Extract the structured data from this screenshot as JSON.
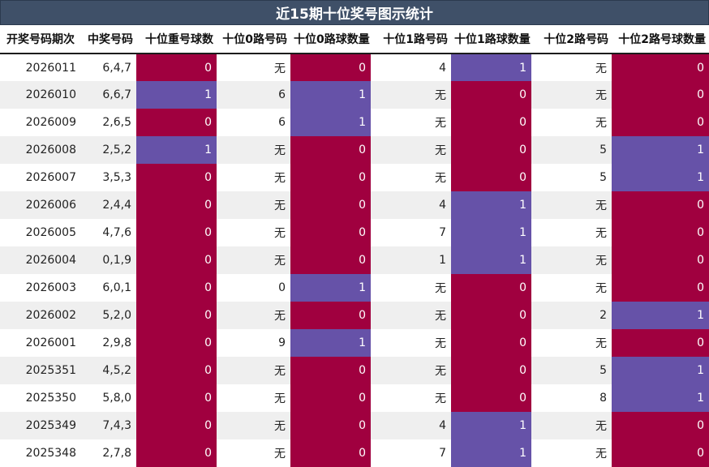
{
  "title": "近15期十位奖号图示统计",
  "colors": {
    "header_bg": "#3f5068",
    "zero_cell": "#a0003f",
    "one_cell": "#6652a8",
    "alt_row": "#efefef"
  },
  "chart_data": {
    "type": "table",
    "title": "近15期十位奖号图示统计",
    "columns": [
      "开奖号码期次",
      "中奖号码",
      "十位重号球数",
      "十位0路号码",
      "十位0路球数量",
      "十位1路号码",
      "十位1路球数量",
      "十位2路号码",
      "十位2路号球数量"
    ],
    "rows": [
      [
        "2026011",
        "6,4,7",
        "0",
        "无",
        "0",
        "4",
        "1",
        "无",
        "0"
      ],
      [
        "2026010",
        "6,6,7",
        "1",
        "6",
        "1",
        "无",
        "0",
        "无",
        "0"
      ],
      [
        "2026009",
        "2,6,5",
        "0",
        "6",
        "1",
        "无",
        "0",
        "无",
        "0"
      ],
      [
        "2026008",
        "2,5,2",
        "1",
        "无",
        "0",
        "无",
        "0",
        "5",
        "1"
      ],
      [
        "2026007",
        "3,5,3",
        "0",
        "无",
        "0",
        "无",
        "0",
        "5",
        "1"
      ],
      [
        "2026006",
        "2,4,4",
        "0",
        "无",
        "0",
        "4",
        "1",
        "无",
        "0"
      ],
      [
        "2026005",
        "4,7,6",
        "0",
        "无",
        "0",
        "7",
        "1",
        "无",
        "0"
      ],
      [
        "2026004",
        "0,1,9",
        "0",
        "无",
        "0",
        "1",
        "1",
        "无",
        "0"
      ],
      [
        "2026003",
        "6,0,1",
        "0",
        "0",
        "1",
        "无",
        "0",
        "无",
        "0"
      ],
      [
        "2026002",
        "5,2,0",
        "0",
        "无",
        "0",
        "无",
        "0",
        "2",
        "1"
      ],
      [
        "2026001",
        "2,9,8",
        "0",
        "9",
        "1",
        "无",
        "0",
        "无",
        "0"
      ],
      [
        "2025351",
        "4,5,2",
        "0",
        "无",
        "0",
        "无",
        "0",
        "5",
        "1"
      ],
      [
        "2025350",
        "5,8,0",
        "0",
        "无",
        "0",
        "无",
        "0",
        "8",
        "1"
      ],
      [
        "2025349",
        "7,4,3",
        "0",
        "无",
        "0",
        "4",
        "1",
        "无",
        "0"
      ],
      [
        "2025348",
        "2,7,8",
        "0",
        "无",
        "0",
        "7",
        "1",
        "无",
        "0"
      ]
    ],
    "highlighted_columns": [
      2,
      4,
      6,
      8
    ]
  }
}
